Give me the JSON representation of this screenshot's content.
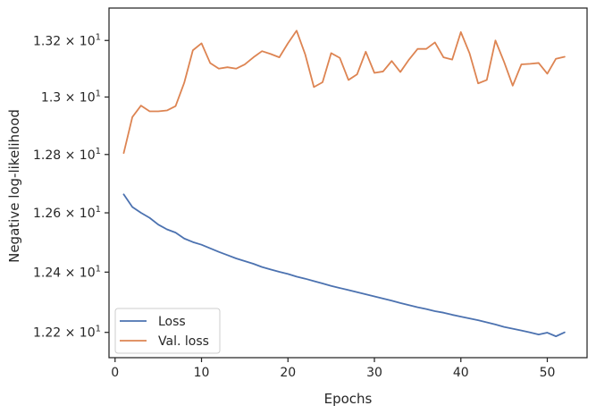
{
  "chart_data": {
    "type": "line",
    "xlabel": "Epochs",
    "ylabel": "Negative log-likelihood",
    "xlim": [
      -0.7,
      54.6
    ],
    "ylim": [
      12.117,
      13.316
    ],
    "x_ticks": [
      0,
      10,
      20,
      30,
      40,
      50
    ],
    "y_ticks": [
      {
        "value": 12.2,
        "label": "1.22 × 10",
        "exp": "1"
      },
      {
        "value": 12.4,
        "label": "1.24 × 10",
        "exp": "1"
      },
      {
        "value": 12.6,
        "label": "1.26 × 10",
        "exp": "1"
      },
      {
        "value": 12.8,
        "label": "1.28 × 10",
        "exp": "1"
      },
      {
        "value": 13.0,
        "label": "1.3 × 10",
        "exp": "1"
      },
      {
        "value": 13.2,
        "label": "1.32 × 10",
        "exp": "1"
      }
    ],
    "y_scale": "log",
    "grid": false,
    "legend_position": "lower-left",
    "x": [
      1,
      2,
      3,
      4,
      5,
      6,
      7,
      8,
      9,
      10,
      11,
      12,
      13,
      14,
      15,
      16,
      17,
      18,
      19,
      20,
      21,
      22,
      23,
      24,
      25,
      26,
      27,
      28,
      29,
      30,
      31,
      32,
      33,
      34,
      35,
      36,
      37,
      38,
      39,
      40,
      41,
      42,
      43,
      44,
      45,
      46,
      47,
      48,
      49,
      50,
      51,
      52
    ],
    "series": [
      {
        "name": "Loss",
        "color": "#4c72b0",
        "values": [
          12.663,
          12.62,
          12.6,
          12.583,
          12.56,
          12.544,
          12.533,
          12.513,
          12.501,
          12.492,
          12.48,
          12.468,
          12.457,
          12.446,
          12.437,
          12.428,
          12.417,
          12.409,
          12.401,
          12.394,
          12.385,
          12.378,
          12.37,
          12.362,
          12.354,
          12.347,
          12.34,
          12.333,
          12.326,
          12.319,
          12.312,
          12.305,
          12.297,
          12.29,
          12.283,
          12.277,
          12.27,
          12.265,
          12.258,
          12.252,
          12.246,
          12.24,
          12.233,
          12.226,
          12.218,
          12.212,
          12.206,
          12.2,
          12.193,
          12.199,
          12.187,
          12.2
        ]
      },
      {
        "name": "Val. loss",
        "color": "#dd8452",
        "values": [
          12.805,
          12.93,
          12.97,
          12.95,
          12.95,
          12.953,
          12.968,
          13.05,
          13.165,
          13.19,
          13.12,
          13.1,
          13.105,
          13.1,
          13.115,
          13.14,
          13.162,
          13.152,
          13.14,
          13.19,
          13.235,
          13.15,
          13.035,
          13.052,
          13.155,
          13.138,
          13.06,
          13.08,
          13.16,
          13.085,
          13.09,
          13.127,
          13.088,
          13.132,
          13.17,
          13.17,
          13.193,
          13.14,
          13.132,
          13.23,
          13.155,
          13.048,
          13.06,
          13.2,
          13.124,
          13.04,
          13.115,
          13.117,
          13.12,
          13.082,
          13.135,
          13.142
        ]
      }
    ]
  }
}
